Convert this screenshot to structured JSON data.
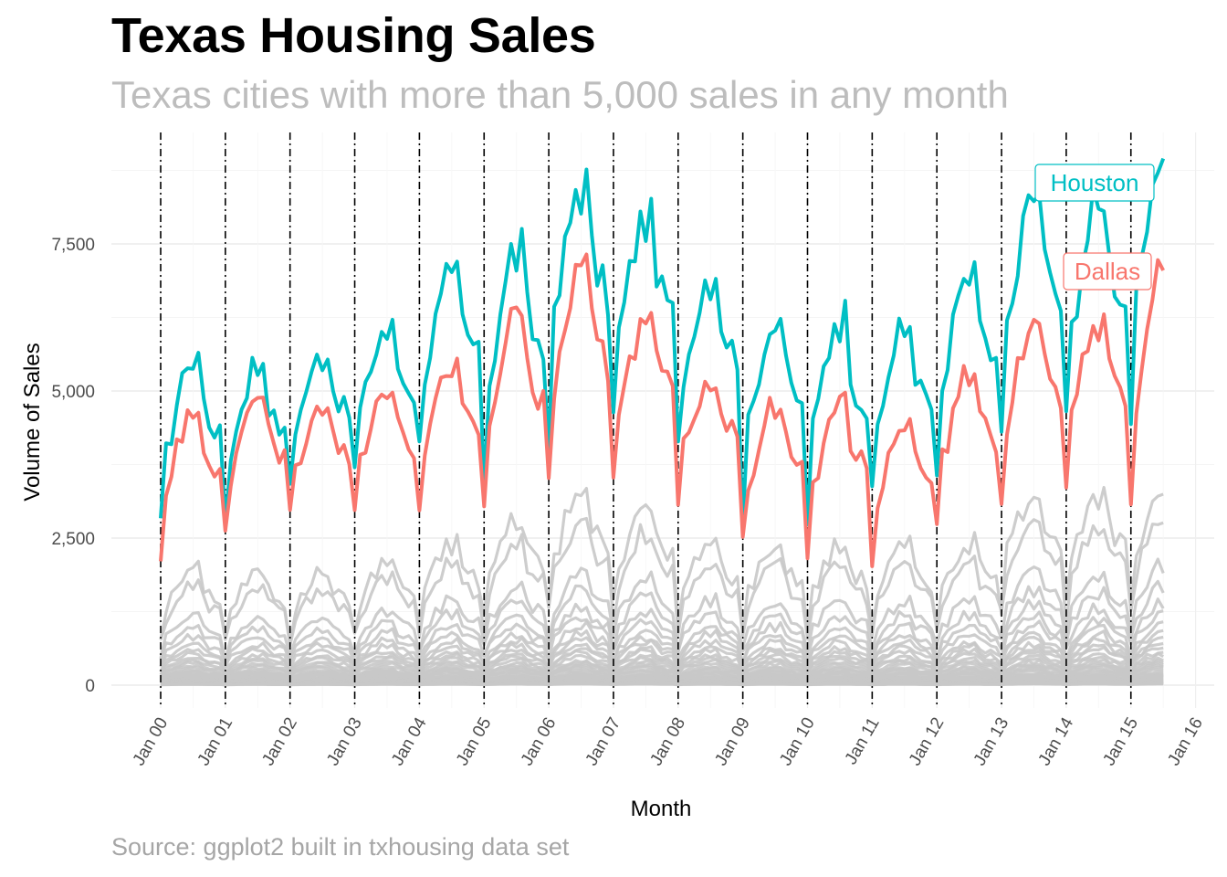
{
  "title": "Texas Housing Sales",
  "subtitle": "Texas cities with more than 5,000 sales in any month",
  "caption": "Source: ggplot2 built in txhousing data set",
  "colors": {
    "houston": "#00BFC4",
    "dallas": "#F8766D",
    "other_cities": "#c8c8c8",
    "grid": "#ebebeb",
    "vline": "#000000"
  },
  "chart_data": {
    "type": "line",
    "xlabel": "Month",
    "ylabel": "Volume of Sales",
    "x_range": [
      "2000-01",
      "2015-07"
    ],
    "ylim": [
      0,
      9000
    ],
    "y_ticks": [
      {
        "value": 0,
        "label": "0"
      },
      {
        "value": 2500,
        "label": "2,500"
      },
      {
        "value": 5000,
        "label": "5,000"
      },
      {
        "value": 7500,
        "label": "7,500"
      }
    ],
    "x_ticks": [
      "Jan 00",
      "Jan 01",
      "Jan 02",
      "Jan 03",
      "Jan 04",
      "Jan 05",
      "Jan 06",
      "Jan 07",
      "Jan 08",
      "Jan 09",
      "Jan 10",
      "Jan 11",
      "Jan 12",
      "Jan 13",
      "Jan 14",
      "Jan 15",
      "Jan 16"
    ],
    "x_tick_years": [
      2000,
      2001,
      2002,
      2003,
      2004,
      2005,
      2006,
      2007,
      2008,
      2009,
      2010,
      2011,
      2012,
      2013,
      2014,
      2015,
      2016
    ],
    "vertical_lines": [
      "Jan 00",
      "Jan 01",
      "Jan 02",
      "Jan 03",
      "Jan 04",
      "Jan 05",
      "Jan 06",
      "Jan 07",
      "Jan 08",
      "Jan 09",
      "Jan 10",
      "Jan 11",
      "Jan 12",
      "Jan 13",
      "Jan 14",
      "Jan 15"
    ],
    "grid": true,
    "series": [
      {
        "name": "Houston",
        "highlight": true,
        "annual_min": [
          2650,
          2800,
          3450,
          3650,
          4050,
          3550,
          4350,
          4550,
          4000,
          2950,
          2850,
          3150,
          3350,
          4250,
          4450,
          4600
        ],
        "annual_peak": [
          5650,
          5550,
          5650,
          6100,
          7050,
          7500,
          8600,
          8000,
          7000,
          6300,
          6350,
          6150,
          7100,
          8450,
          8300,
          8950
        ]
      },
      {
        "name": "Dallas",
        "highlight": true,
        "annual_min": [
          2300,
          2500,
          2850,
          2800,
          2900,
          2950,
          3450,
          3650,
          3200,
          2350,
          2200,
          2150,
          2550,
          3200,
          3150,
          3050
        ],
        "annual_peak": [
          4750,
          5050,
          4800,
          5100,
          5500,
          6400,
          7150,
          6200,
          5200,
          4850,
          4900,
          4550,
          5500,
          6300,
          6300,
          7050
        ]
      },
      {
        "name": "Other cities",
        "highlight": false,
        "annual_peaks_largest": [
          2000,
          1950,
          1950,
          2150,
          2450,
          2850,
          3300,
          3050,
          2450,
          2400,
          2400,
          2400,
          2450,
          3350,
          3200,
          3450
        ]
      }
    ]
  }
}
